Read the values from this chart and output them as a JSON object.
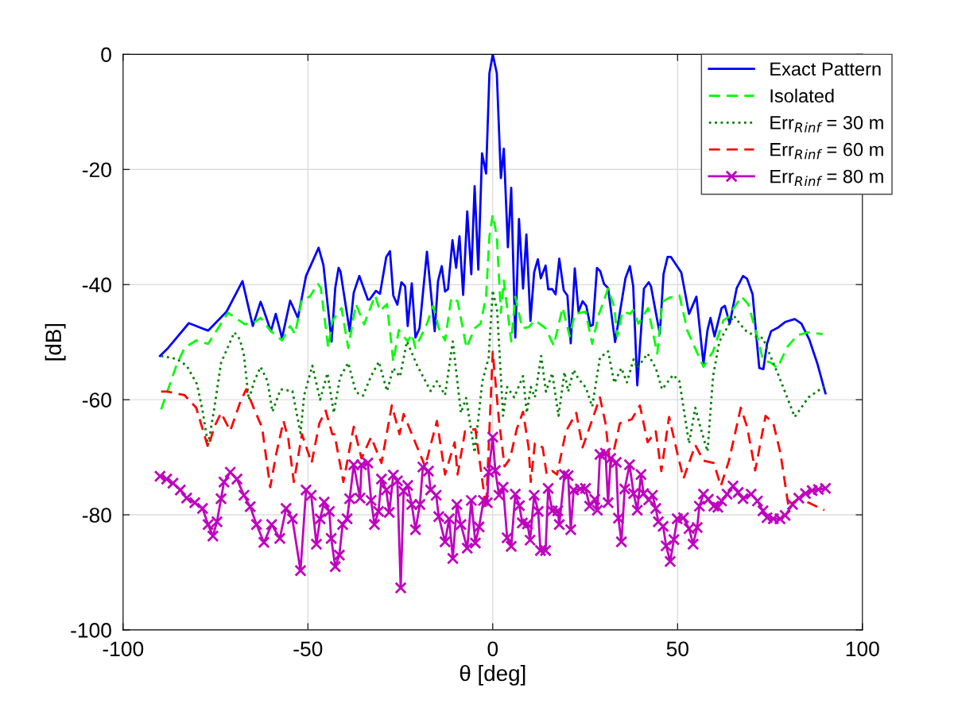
{
  "chart_data": {
    "type": "line",
    "xlabel": "θ [deg]",
    "ylabel": "[dB]",
    "xlim": [
      -100,
      100
    ],
    "xticks": [
      -100,
      -50,
      0,
      50,
      100
    ],
    "ylim": [
      -100,
      0
    ],
    "yticks": [
      -100,
      -80,
      -60,
      -40,
      -20,
      0
    ],
    "grid": true,
    "legend": "top right",
    "series": [
      {
        "name": "Exact Pattern",
        "color": "#0000ff",
        "line_style": "solid",
        "x": [
          -90,
          -87.8,
          -82.2,
          -77,
          -72,
          -67.7,
          -64.9,
          -62.8,
          -62.2,
          -60,
          -58.7,
          -57,
          -54.8,
          -52.7,
          -50.5,
          -47.1,
          -45.8,
          -43.6,
          -42.6,
          -41.7,
          -41.2,
          -38.7,
          -37.6,
          -36.1,
          -33.8,
          -33.3,
          -31.6,
          -30.5,
          -28.8,
          -27.8,
          -26.9,
          -25.8,
          -24.7,
          -23.7,
          -23,
          -21.9,
          -20.9,
          -19.8,
          -17.8,
          -15.7,
          -14.8,
          -13.8,
          -12.9,
          -12.1,
          -10.9,
          -9.9,
          -9,
          -8,
          -6.9,
          -5.8,
          -4.9,
          -3.9,
          -2.9,
          -1.8,
          -0.9,
          0,
          1.1,
          2.2,
          3,
          4.1,
          5,
          6.1,
          7.1,
          8.2,
          9.1,
          10.2,
          11.2,
          12.2,
          13,
          14.3,
          15,
          16.1,
          17,
          18,
          19.2,
          20.2,
          21.1,
          22.2,
          23.2,
          24.3,
          25.3,
          26.4,
          27.1,
          28.2,
          29.1,
          30.1,
          31.2,
          33.1,
          33.7,
          35.9,
          37.1,
          38,
          39.1,
          40.9,
          42.2,
          42.8,
          45.2,
          46.2,
          47.3,
          48.2,
          51,
          53.1,
          55.1,
          57,
          58.1,
          58.9,
          60,
          61.9,
          62.8,
          64.1,
          66,
          67.7,
          68.8,
          70.3,
          72.1,
          73.2,
          74.2,
          75.3,
          77.1,
          79.1,
          81.7,
          83.5,
          85.6,
          87.8,
          90
        ],
        "values": [
          -52.4,
          -51,
          -46.7,
          -48,
          -44.7,
          -39.4,
          -47.2,
          -43,
          -44,
          -48.1,
          -45.1,
          -49.3,
          -42.8,
          -45.8,
          -38.5,
          -33.6,
          -36.6,
          -49.9,
          -40.6,
          -37.1,
          -37.7,
          -48.1,
          -41.4,
          -38.5,
          -42.6,
          -42.6,
          -41.1,
          -41.6,
          -35.2,
          -34.2,
          -41.9,
          -43.5,
          -39.6,
          -40.3,
          -47.2,
          -39.8,
          -49.2,
          -47.6,
          -34.3,
          -48.1,
          -39.4,
          -36.8,
          -41.2,
          -40.8,
          -32.3,
          -37.1,
          -31.6,
          -41.8,
          -27.3,
          -38.2,
          -22.9,
          -37.4,
          -17.2,
          -20.7,
          -3.3,
          0,
          -3.3,
          -21.5,
          -16.4,
          -33.5,
          -23.2,
          -49.2,
          -28.6,
          -40.7,
          -31.3,
          -46.3,
          -37.9,
          -35.6,
          -38.9,
          -36.7,
          -40.8,
          -40.8,
          -41.7,
          -35.5,
          -41,
          -41.9,
          -50.2,
          -37.2,
          -44.7,
          -42.9,
          -43.7,
          -47.2,
          -47,
          -37.1,
          -37.7,
          -39.9,
          -40.6,
          -50,
          -47.6,
          -38.9,
          -36.8,
          -40.3,
          -57.5,
          -40.7,
          -39.6,
          -40.3,
          -48.6,
          -38.2,
          -35.2,
          -35.2,
          -37.9,
          -45.1,
          -42.1,
          -53.8,
          -47.9,
          -45.8,
          -49,
          -44.1,
          -43.7,
          -46.8,
          -40.6,
          -38.5,
          -39,
          -41.7,
          -54.5,
          -54.7,
          -50.3,
          -48.1,
          -47.5,
          -46.5,
          -46,
          -46.8,
          -49.5,
          -53.7,
          -58.9
        ]
      },
      {
        "name": "Isolated",
        "color": "#00ff00",
        "line_style": "dashed",
        "x": [
          -89.7,
          -85.6,
          -83.4,
          -80.2,
          -77,
          -71.6,
          -67.1,
          -64.9,
          -62.8,
          -60,
          -57,
          -54.8,
          -53.5,
          -51.6,
          -49.5,
          -47.3,
          -46.5,
          -44.5,
          -43.4,
          -40.9,
          -39.1,
          -37,
          -34.8,
          -31.8,
          -30.5,
          -28.6,
          -26.9,
          -25.4,
          -23,
          -21.9,
          -20.9,
          -17.8,
          -16.1,
          -14.6,
          -12.9,
          -11.2,
          -9.5,
          -7.1,
          -4.9,
          -3.3,
          -1.8,
          -0.9,
          0,
          1.1,
          2.2,
          3,
          5,
          6.1,
          8,
          9.7,
          11.4,
          14.3,
          16.5,
          18.9,
          20.8,
          22.2,
          25.1,
          26.9,
          28.6,
          31.2,
          32.9,
          33.7,
          35.1,
          37.2,
          38,
          39.4,
          42,
          44.5,
          45.9,
          47.7,
          50.5,
          52.7,
          57,
          59.6,
          62.4,
          63.7,
          65.2,
          67.3,
          69.1,
          71.4,
          73.1,
          75.3,
          77,
          79.6,
          82.4,
          85.3,
          89.2
        ],
        "values": [
          -61.7,
          -54.1,
          -51,
          -49.7,
          -50.3,
          -44.9,
          -46.9,
          -46.7,
          -45.8,
          -48.1,
          -49.7,
          -47.2,
          -48.6,
          -42.6,
          -42.1,
          -39.9,
          -40.6,
          -51,
          -46.3,
          -44.1,
          -51,
          -43.4,
          -46.9,
          -41.9,
          -44.6,
          -43.4,
          -53.4,
          -47.9,
          -49.9,
          -48.6,
          -51,
          -46.8,
          -43.7,
          -47.6,
          -49.7,
          -42.3,
          -42.9,
          -51,
          -47.6,
          -46.8,
          -42.1,
          -31.6,
          -27.9,
          -31.6,
          -44.9,
          -39.3,
          -49.9,
          -42.1,
          -47.6,
          -47.4,
          -46.2,
          -47.6,
          -50.6,
          -44,
          -49,
          -45.1,
          -44.7,
          -50.3,
          -45.4,
          -40.7,
          -44,
          -49,
          -44.7,
          -45.1,
          -44.4,
          -46.8,
          -44.1,
          -52,
          -43,
          -42.3,
          -41.9,
          -48.1,
          -54.3,
          -51.6,
          -46.2,
          -45.7,
          -44.1,
          -42.1,
          -43.4,
          -48.6,
          -53.1,
          -53.6,
          -54.5,
          -50.9,
          -48.8,
          -48.3,
          -48.6
        ]
      },
      {
        "name": "Err$_{R}$$_{inf}$ = 30 m",
        "color": "#008000",
        "line_style": "dotted",
        "x": [
          -89.7,
          -85.6,
          -82.8,
          -80,
          -78.5,
          -77,
          -75.3,
          -73.5,
          -69.9,
          -68.4,
          -67.3,
          -66,
          -64.5,
          -62.8,
          -60.9,
          -59.6,
          -57.4,
          -54.2,
          -52,
          -51,
          -48.8,
          -46.7,
          -44.7,
          -43,
          -41.3,
          -39.1,
          -37,
          -35.1,
          -32.9,
          -30.8,
          -28.6,
          -26.9,
          -25.1,
          -23.2,
          -20.4,
          -16.8,
          -15.1,
          -12.9,
          -10.8,
          -8.6,
          -7.2,
          -4.9,
          -2.8,
          -1.1,
          0,
          1.2,
          2.8,
          3.9,
          5.8,
          8.2,
          9.2,
          10.3,
          11.4,
          13.1,
          14.4,
          16.1,
          17.8,
          19.4,
          20.4,
          21.9,
          23.1,
          25.2,
          26.9,
          29,
          31.2,
          32.9,
          34.8,
          36.3,
          38.1,
          39.1,
          41.9,
          44.1,
          45.8,
          48.8,
          50.5,
          53.1,
          54.8,
          56.3,
          58.1,
          59.6,
          61.3,
          65.2,
          68.2,
          71,
          73.1,
          75.3,
          77.4,
          81.7,
          85.4,
          89.7
        ],
        "values": [
          -52.4,
          -52.9,
          -54.1,
          -57.3,
          -61.9,
          -67.9,
          -61.4,
          -53.6,
          -48.3,
          -49.5,
          -52.3,
          -60,
          -56.8,
          -54.3,
          -56.8,
          -62.1,
          -58.2,
          -58.5,
          -65.8,
          -59.2,
          -54.1,
          -60,
          -55.4,
          -62.3,
          -56.1,
          -53.6,
          -58.7,
          -59.3,
          -55.9,
          -53.4,
          -58.5,
          -54.5,
          -56,
          -49.9,
          -54.1,
          -58.5,
          -56.8,
          -59.2,
          -49.9,
          -62.3,
          -59.7,
          -69.2,
          -56.8,
          -52.7,
          -41,
          -44.6,
          -62.8,
          -57.8,
          -59.6,
          -55.9,
          -62.3,
          -57.8,
          -59.6,
          -52.4,
          -58.6,
          -55.4,
          -62.8,
          -55.2,
          -58.6,
          -54.8,
          -56.3,
          -57.9,
          -61.2,
          -52.7,
          -51.6,
          -57.1,
          -54.5,
          -57,
          -53,
          -54.5,
          -52,
          -54.5,
          -58.2,
          -55.7,
          -56.8,
          -67.6,
          -61.4,
          -65.1,
          -69,
          -55.9,
          -49.9,
          -45.4,
          -47.9,
          -49,
          -49.3,
          -52.7,
          -55.9,
          -63,
          -59.6,
          -57.7
        ]
      },
      {
        "name": "Err$_{R}$$_{inf}$ = 60 m",
        "color": "#ff0000",
        "line_style": "dashed",
        "x": [
          -89.7,
          -88,
          -83.4,
          -80.2,
          -77,
          -75.3,
          -73.5,
          -71,
          -68.4,
          -66.7,
          -64.5,
          -62.4,
          -60.2,
          -58.5,
          -56.6,
          -55.3,
          -53.8,
          -51.6,
          -49,
          -46.9,
          -45.2,
          -43.4,
          -42.8,
          -40.4,
          -37.6,
          -35.5,
          -32.9,
          -30.1,
          -27.3,
          -25.2,
          -24.1,
          -20.4,
          -18.3,
          -15.1,
          -12.9,
          -10.3,
          -9.5,
          -7.5,
          -4.7,
          -1.8,
          0,
          1.7,
          3.2,
          4.7,
          6.5,
          8.2,
          9.7,
          10.3,
          11.4,
          13.5,
          14.6,
          16.1,
          17.4,
          19.8,
          22.6,
          24.3,
          26.2,
          29,
          30.5,
          31.8,
          34.4,
          37.6,
          39.8,
          41.9,
          44.1,
          45.6,
          47.7,
          49.9,
          51.6,
          54.8,
          57,
          59.8,
          61.7,
          63.9,
          67.1,
          68.8,
          71,
          73.8,
          75.9,
          77.8,
          80,
          82.8,
          87.7,
          89.7
        ],
        "values": [
          -58.6,
          -58.6,
          -59.2,
          -61.4,
          -68.3,
          -64.7,
          -62.3,
          -65.4,
          -60.6,
          -58.2,
          -61.7,
          -64.8,
          -75.2,
          -69.2,
          -63.7,
          -66.8,
          -74.3,
          -66,
          -71,
          -64.1,
          -61.9,
          -66,
          -66,
          -74.3,
          -64.7,
          -70.2,
          -66.5,
          -71,
          -61,
          -66,
          -62.5,
          -68.3,
          -71.6,
          -63.7,
          -73,
          -67.4,
          -73,
          -65.5,
          -65.1,
          -78.9,
          -51.7,
          -63.7,
          -71.6,
          -70.2,
          -65.1,
          -62.1,
          -68.3,
          -74.3,
          -67.6,
          -68.3,
          -73,
          -72.4,
          -73,
          -65.5,
          -62.3,
          -68.3,
          -64.8,
          -59.6,
          -64.1,
          -71.6,
          -64.1,
          -63.4,
          -61,
          -67.4,
          -65.5,
          -72.4,
          -63,
          -69.2,
          -73.7,
          -67.9,
          -70.6,
          -71,
          -75,
          -70.6,
          -61.4,
          -64.7,
          -72.3,
          -62.8,
          -64.1,
          -69.2,
          -78.5,
          -77.1,
          -78.6,
          -79.2
        ]
      },
      {
        "name": "Err$_{R}$$_{inf}$ = 80 m",
        "color": "#bf00bf",
        "line_style": "solid",
        "marker": "cross",
        "x": [
          -90,
          -88.2,
          -86.5,
          -84.5,
          -82.8,
          -80.6,
          -78.5,
          -77,
          -75.7,
          -74.6,
          -73.5,
          -72.7,
          -71,
          -69.2,
          -67.3,
          -65.6,
          -63.9,
          -61.9,
          -59.8,
          -57.6,
          -55.9,
          -54.2,
          -52,
          -50.5,
          -49.1,
          -47.7,
          -46.7,
          -45.6,
          -44.2,
          -43.7,
          -42.6,
          -41.5,
          -40.6,
          -39.4,
          -38.7,
          -37.6,
          -35.9,
          -35.5,
          -33.8,
          -32.9,
          -32,
          -30.9,
          -30.1,
          -28.8,
          -28,
          -26.9,
          -25.8,
          -24.9,
          -24.1,
          -23,
          -21.9,
          -20.9,
          -19.7,
          -18.9,
          -17.4,
          -16.8,
          -15.3,
          -14.6,
          -12.9,
          -11.8,
          -10.8,
          -9.7,
          -8.6,
          -6.9,
          -5.8,
          -4.7,
          -3.7,
          -2.5,
          -1.5,
          -1.1,
          0,
          0.7,
          1.7,
          2.8,
          3.9,
          5,
          6.1,
          7.2,
          8,
          9.4,
          10.1,
          11.2,
          12.3,
          12.9,
          14.3,
          15,
          16.1,
          17.6,
          18,
          19.4,
          20.4,
          21.1,
          21.9,
          23.7,
          25.1,
          26.2,
          27.6,
          28.3,
          29,
          30.5,
          31.2,
          31.9,
          33.4,
          34,
          34.8,
          35.7,
          37,
          38.1,
          39.1,
          40.1,
          40.8,
          42.2,
          43.2,
          44.1,
          44.8,
          46.1,
          46.9,
          48,
          49,
          49.9,
          51.6,
          53.1,
          54.2,
          55.3,
          55.9,
          57,
          58.3,
          59.8,
          60.9,
          61.9,
          63.4,
          65,
          66.4,
          67.7,
          69.9,
          71.6,
          73.1,
          74.2,
          75.9,
          77.7,
          79.1,
          81.1,
          82.8,
          84.6,
          86.4,
          88.1,
          90
        ],
        "values": [
          -73.3,
          -73.8,
          -74.5,
          -75.7,
          -77.1,
          -77.9,
          -78.9,
          -81.7,
          -83.7,
          -81.2,
          -77.2,
          -74.3,
          -72.6,
          -73.8,
          -76.6,
          -78.6,
          -81.7,
          -84.8,
          -81.7,
          -84.1,
          -78.9,
          -80.7,
          -89.7,
          -75.7,
          -76.6,
          -85.1,
          -80.7,
          -77.8,
          -79.4,
          -84.1,
          -89,
          -87,
          -81.7,
          -80.7,
          -77.2,
          -71.3,
          -77.1,
          -71.3,
          -71,
          -77.5,
          -81.7,
          -79.4,
          -73.8,
          -75.7,
          -79.6,
          -73.1,
          -74.1,
          -92.7,
          -75.9,
          -74.9,
          -78.2,
          -82.6,
          -78.2,
          -71.7,
          -72.4,
          -75.7,
          -76.6,
          -80.3,
          -84.7,
          -80.7,
          -87.6,
          -78.2,
          -81.7,
          -85.8,
          -77.5,
          -84.9,
          -82.1,
          -77.5,
          -77.9,
          -72.6,
          -66.5,
          -72.3,
          -76.6,
          -75.2,
          -84,
          -85.5,
          -76.4,
          -78.4,
          -81.4,
          -81.6,
          -84.4,
          -76.6,
          -79.4,
          -86.2,
          -86.2,
          -75.4,
          -79.3,
          -79.3,
          -81.7,
          -73,
          -73.2,
          -82.6,
          -75.7,
          -75.5,
          -75.4,
          -78.5,
          -77.3,
          -79.2,
          -69.5,
          -69.3,
          -77.9,
          -70.2,
          -70.9,
          -80.6,
          -84.7,
          -75.5,
          -71.3,
          -76.3,
          -79.2,
          -73,
          -76.3,
          -77.4,
          -76.6,
          -78.9,
          -81.2,
          -82,
          -85.4,
          -88.1,
          -84.3,
          -80.7,
          -80.5,
          -82.4,
          -85.1,
          -82.2,
          -78.5,
          -76.4,
          -77.3,
          -78.5,
          -78.7,
          -77.6,
          -76.4,
          -75,
          -76.1,
          -77.2,
          -76.4,
          -77.6,
          -79.3,
          -80.5,
          -80.7,
          -80.7,
          -80.1,
          -78.2,
          -77.1,
          -76.3,
          -75.8,
          -75.6,
          -75.4
        ]
      }
    ]
  }
}
